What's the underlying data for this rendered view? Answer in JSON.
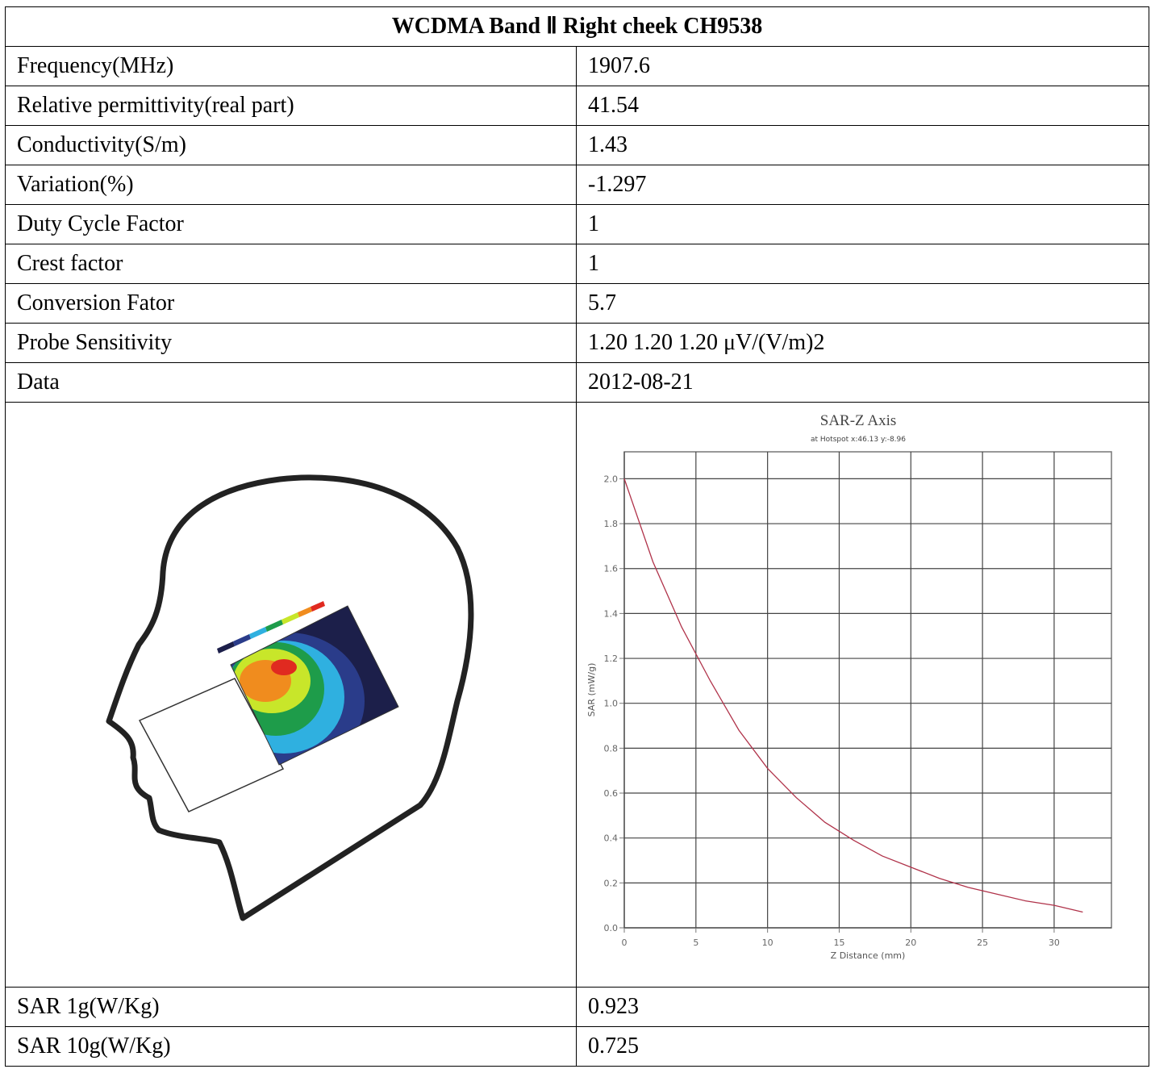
{
  "table": {
    "title": "WCDMA Band Ⅱ Right cheek CH9538",
    "rows": [
      [
        "Frequency(MHz)",
        "1907.6"
      ],
      [
        "Relative permittivity(real part)",
        "41.54"
      ],
      [
        "Conductivity(S/m)",
        "1.43"
      ],
      [
        "Variation(%)",
        "-1.297"
      ],
      [
        "Duty Cycle Factor",
        "1"
      ],
      [
        "Crest factor",
        "1"
      ],
      [
        "Conversion Fator",
        "5.7"
      ],
      [
        "Probe Sensitivity",
        "1.20 1.20 1.20 μV/(V/m)2"
      ],
      [
        "Data",
        "2012-08-21"
      ]
    ],
    "result_rows": [
      [
        "SAR 1g(W/Kg)",
        "0.923"
      ],
      [
        "SAR 10g(W/Kg)",
        "0.725"
      ]
    ]
  },
  "chart_data": {
    "type": "line",
    "title": "SAR-Z Axis",
    "subtitle": "at Hotspot x:46.13 y:-8.96",
    "x_label": "Z Distance (mm)",
    "y_label": "SAR (mW/g)",
    "x": [
      0,
      2,
      4,
      6,
      8,
      10,
      12,
      14,
      16,
      18,
      20,
      22,
      24,
      26,
      28,
      30,
      32
    ],
    "series": [
      {
        "name": "SAR",
        "color": "#b0334a",
        "values": [
          2.0,
          1.63,
          1.34,
          1.1,
          0.88,
          0.71,
          0.58,
          0.47,
          0.39,
          0.32,
          0.27,
          0.22,
          0.18,
          0.15,
          0.12,
          0.1,
          0.07
        ]
      }
    ],
    "xlim": [
      0,
      34
    ],
    "ylim": [
      0,
      2.12
    ],
    "xticks": [
      0,
      5,
      10,
      15,
      20,
      25,
      30
    ],
    "yticks": [
      {
        "value": 0,
        "label": "0.0"
      },
      0.2,
      0.4,
      0.6,
      0.8,
      {
        "value": 1,
        "label": "1.0"
      },
      1.2,
      1.4,
      1.6,
      1.8,
      {
        "value": 2,
        "label": "2.0"
      }
    ],
    "grid": true
  }
}
